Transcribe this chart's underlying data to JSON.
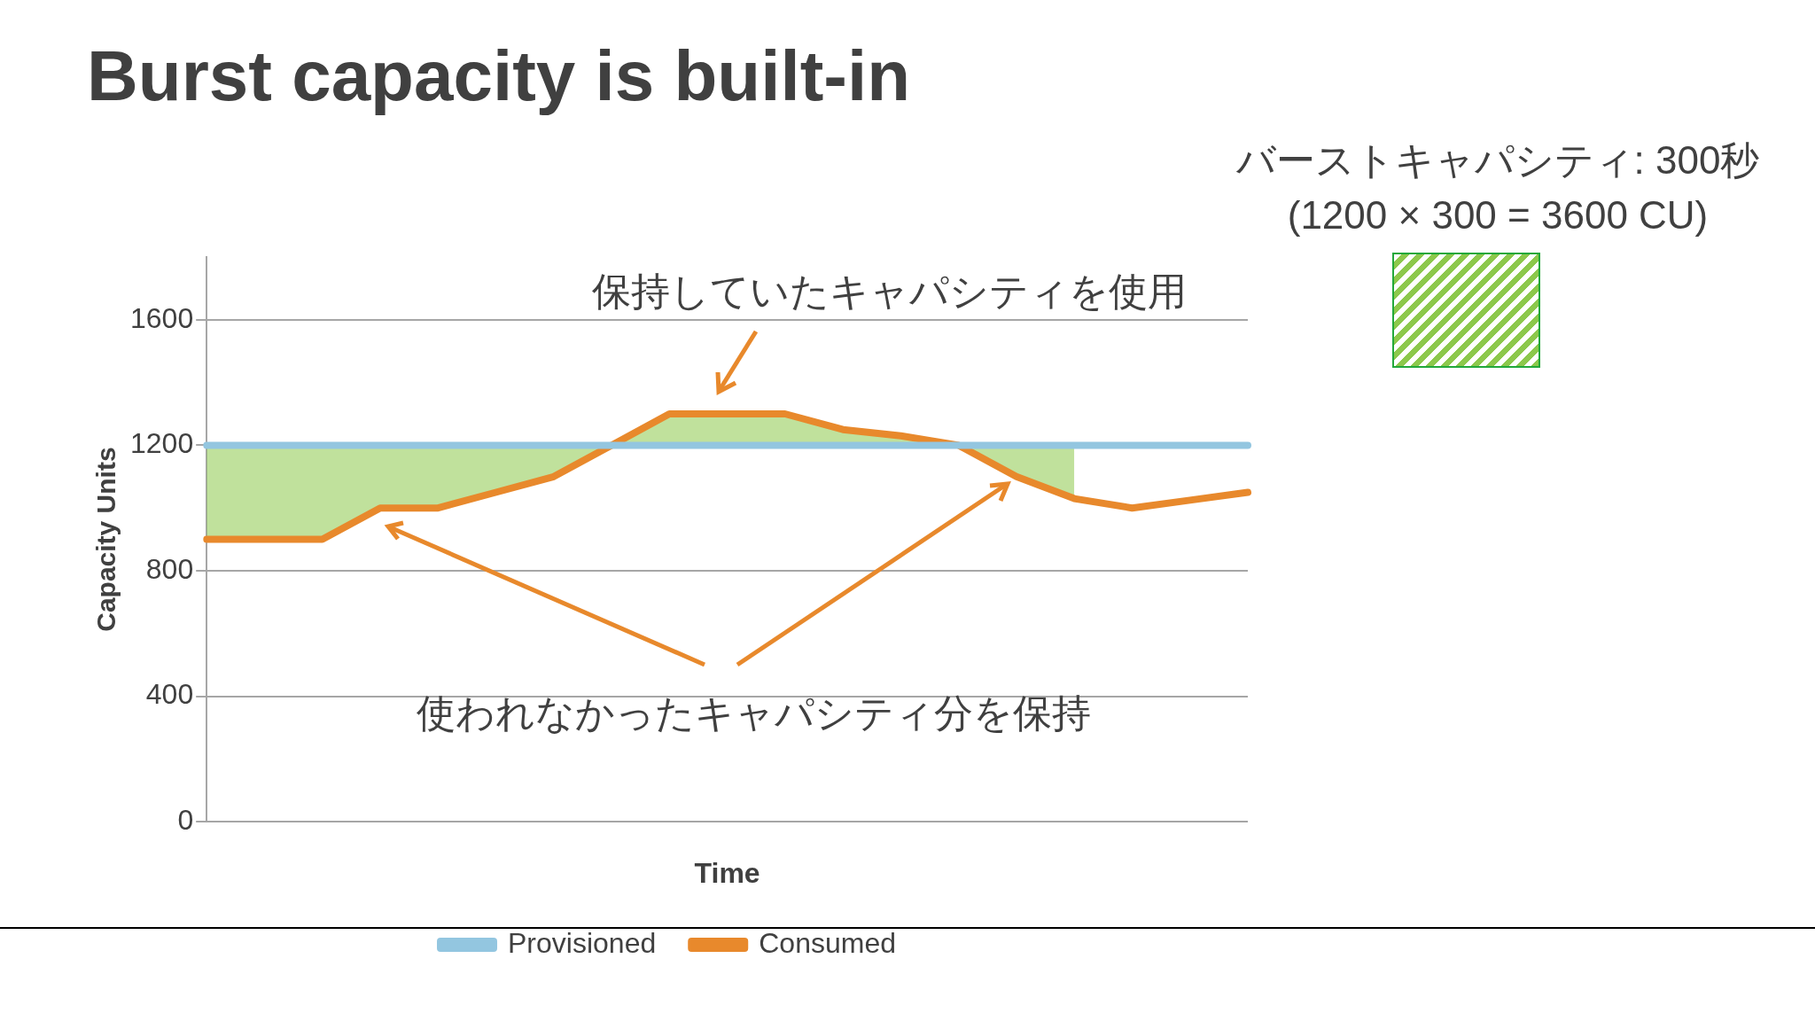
{
  "chart_data": {
    "type": "line",
    "title": "Burst capacity is built-in",
    "xlabel": "Time",
    "ylabel": "Capacity Units",
    "categories": [
      null,
      null,
      null,
      null,
      null,
      null,
      null,
      null,
      null,
      null,
      null,
      null,
      null,
      null,
      null,
      null,
      null,
      null,
      null
    ],
    "ylim": [
      0,
      1800
    ],
    "yticks": [
      0,
      400,
      800,
      1200,
      1600
    ],
    "grid": "y",
    "legend": "bottom",
    "marker": "none",
    "line_style": "solid",
    "series": [
      {
        "name": "Provisioned",
        "color": "#93c6e0",
        "values": [
          1200,
          1200,
          1200,
          1200,
          1200,
          1200,
          1200,
          1200,
          1200,
          1200,
          1200,
          1200,
          1200,
          1200,
          1200,
          1200,
          1200,
          1200,
          1200
        ]
      },
      {
        "name": "Consumed",
        "color": "#e8892c",
        "values": [
          900,
          900,
          900,
          1000,
          1000,
          1050,
          1100,
          1200,
          1300,
          1300,
          1300,
          1250,
          1230,
          1200,
          1100,
          1030,
          1000,
          1025,
          1050
        ],
        "lower": [
          900,
          900,
          900,
          1000,
          1000,
          1050,
          1100,
          1200,
          1200,
          1200,
          1200,
          1200,
          1200,
          1200,
          1100,
          1030,
          null,
          null,
          null
        ],
        "upper": [
          1200,
          1200,
          1200,
          1200,
          1200,
          1200,
          1200,
          1200,
          1300,
          1300,
          1300,
          1250,
          1230,
          1200,
          1200,
          1200,
          null,
          null,
          null
        ]
      }
    ],
    "annotations": [
      "保持していたキャパシティを使用",
      "使われなかったキャパシティ分を保持",
      "バーストキャパシティ: 300秒",
      "(1200 × 300 = 3600 CU)"
    ]
  }
}
